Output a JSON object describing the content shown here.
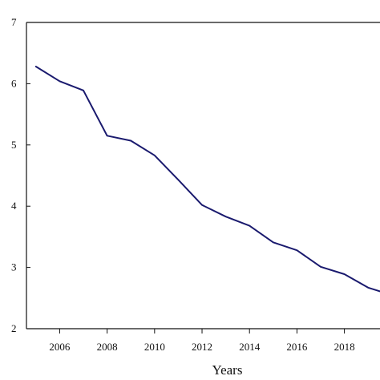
{
  "chart_data": {
    "type": "line",
    "title": "",
    "xlabel": "Years",
    "ylabel": "",
    "xlim": [
      2004.6,
      2019.5
    ],
    "ylim": [
      2,
      7
    ],
    "xticks": [
      2006,
      2008,
      2010,
      2012,
      2014,
      2016,
      2018
    ],
    "yticks": [
      2,
      3,
      4,
      5,
      6,
      7
    ],
    "grid": false,
    "legend": "none",
    "series": [
      {
        "color": "#1a1a6e",
        "x": [
          2005,
          2006,
          2007,
          2008,
          2009,
          2010,
          2011,
          2012,
          2013,
          2014,
          2015,
          2016,
          2017,
          2018,
          2019,
          2019.5
        ],
        "y": [
          6.28,
          6.04,
          5.89,
          5.15,
          5.07,
          4.83,
          4.43,
          4.02,
          3.83,
          3.68,
          3.41,
          3.28,
          3.01,
          2.89,
          2.67,
          2.61
        ]
      }
    ]
  }
}
